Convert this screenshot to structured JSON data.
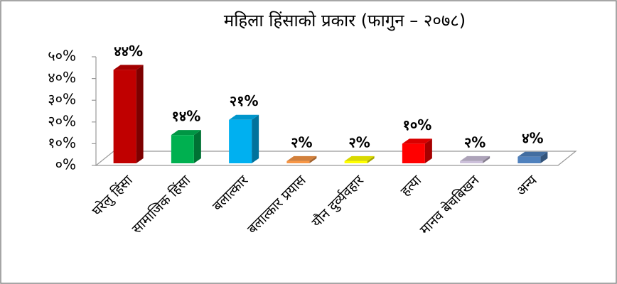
{
  "chart_data": {
    "type": "bar",
    "title": "महिला हिंसाको प्रकार (फागुन – २०७८)",
    "categories": [
      "घरेलु हिंसा",
      "सामाजिक हिंसा",
      "बलात्कार",
      "बलात्कार प्रयास",
      "यौन दुर्व्यवहार",
      "हत्या",
      "मानव बेचबिखन",
      "अन्य"
    ],
    "values": [
      44,
      14,
      21,
      2,
      2,
      10,
      2,
      4
    ],
    "value_labels": [
      "४४%",
      "१४%",
      "२१%",
      "२%",
      "२%",
      "१०%",
      "२%",
      "४%"
    ],
    "colors": [
      "#c00000",
      "#00b050",
      "#00b0f0",
      "#f79646",
      "#ffff00",
      "#ff0000",
      "#ccc0da",
      "#4f81bd"
    ],
    "ylim": [
      0,
      50
    ],
    "yticks": [
      {
        "value": 0,
        "label": "०%"
      },
      {
        "value": 10,
        "label": "१०%"
      },
      {
        "value": 20,
        "label": "२०%"
      },
      {
        "value": 30,
        "label": "३०%"
      },
      {
        "value": 40,
        "label": "४०%"
      },
      {
        "value": 50,
        "label": "५०%"
      }
    ]
  }
}
